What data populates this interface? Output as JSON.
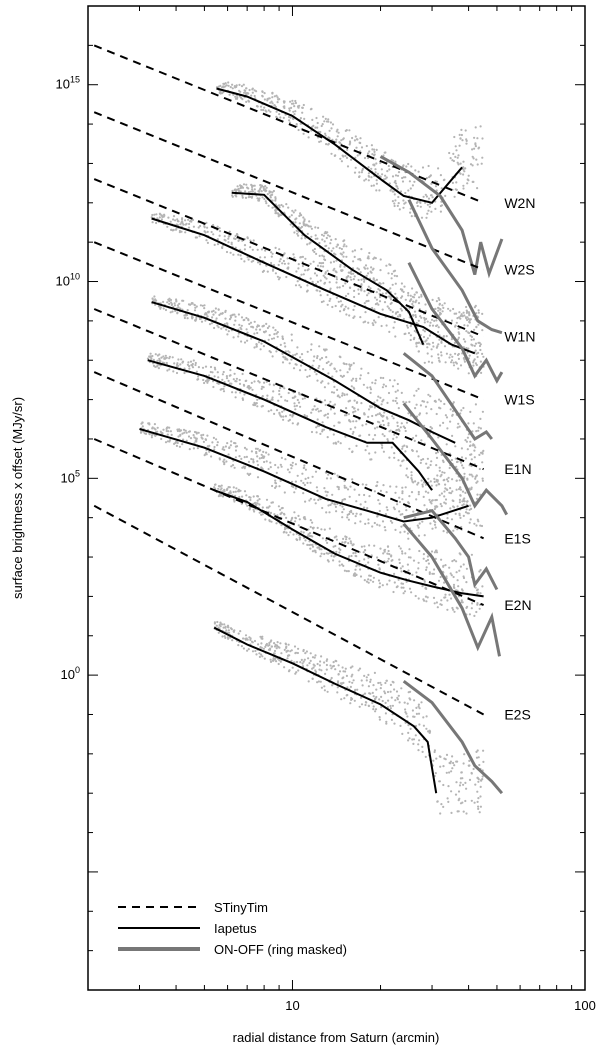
{
  "chart_data": {
    "type": "line",
    "xlabel": "radial distance from Saturn (arcmin)",
    "ylabel": "surface brightness x offset (MJy/sr)",
    "x_scale": "log",
    "y_scale": "log",
    "xlim": [
      2,
      100
    ],
    "ylim": [
      1e-08,
      1e+17
    ],
    "x_ticks": [
      {
        "value": 10,
        "label": "10"
      },
      {
        "value": 100,
        "label": "100"
      }
    ],
    "y_ticks": [
      {
        "value": 1,
        "base": "10",
        "exp": "0"
      },
      {
        "value": 100000,
        "base": "10",
        "exp": "5"
      },
      {
        "value": 10000000000,
        "base": "10",
        "exp": "10"
      },
      {
        "value": 1000000000000000.0,
        "base": "10",
        "exp": "15"
      }
    ],
    "legend": {
      "placement": "bottom-left",
      "entries": [
        {
          "label": "STinyTim",
          "style": "dashed",
          "color": "#000000"
        },
        {
          "label": "Iapetus",
          "style": "solid",
          "color": "#000000"
        },
        {
          "label": "ON-OFF (ring masked)",
          "style": "solid",
          "color": "#777777"
        }
      ]
    },
    "colors": {
      "scatter": "#b4b4b4",
      "stinytim": "#000000",
      "iapetus": "#000000",
      "onoff": "#777777"
    },
    "series": [
      {
        "name": "W2N",
        "stinytim": [
          [
            2.1,
            1e+16
          ],
          [
            45,
            1000000000000.0
          ]
        ],
        "iapetus": [
          [
            5.5,
            800000000000000.0
          ],
          [
            7,
            500000000000000.0
          ],
          [
            10,
            160000000000000.0
          ],
          [
            14,
            30000000000000.0
          ],
          [
            20,
            4000000000000.0
          ],
          [
            24,
            1500000000000.0
          ],
          [
            30,
            1000000000000.0
          ],
          [
            38,
            8000000000000.0
          ]
        ],
        "onoff": [
          [
            20,
            15000000000000.0
          ],
          [
            25,
            6000000000000.0
          ],
          [
            32,
            1500000000000.0
          ],
          [
            38,
            200000000000.0
          ],
          [
            42,
            15000000000.0
          ],
          [
            44,
            100000000000.0
          ],
          [
            47,
            16000000000.0
          ],
          [
            52,
            120000000000.0
          ]
        ]
      },
      {
        "name": "W2S",
        "stinytim": [
          [
            2.1,
            200000000000000.0
          ],
          [
            45,
            20000000000.0
          ]
        ],
        "iapetus": [
          [
            6.2,
            1800000000000.0
          ],
          [
            8,
            1600000000000.0
          ],
          [
            11,
            150000000000.0
          ],
          [
            16,
            20000000000.0
          ],
          [
            21,
            6000000000.0
          ],
          [
            25,
            1700000000.0
          ],
          [
            28,
            250000000.0
          ]
        ],
        "onoff": [
          [
            25,
            1200000000000.0
          ],
          [
            30,
            70000000000.0
          ],
          [
            38,
            6000000000.0
          ],
          [
            43,
            1000000000.0
          ],
          [
            48,
            600000000.0
          ],
          [
            52,
            500000000.0
          ]
        ]
      },
      {
        "name": "W1N",
        "stinytim": [
          [
            2.1,
            4000000000000.0
          ],
          [
            45,
            400000000.0
          ]
        ],
        "iapetus": [
          [
            3.3,
            400000000000.0
          ],
          [
            5,
            150000000000.0
          ],
          [
            8,
            30000000000.0
          ],
          [
            13,
            6000000000.0
          ],
          [
            20,
            1500000000.0
          ],
          [
            28,
            700000000.0
          ],
          [
            35,
            250000000.0
          ],
          [
            42,
            150000000.0
          ]
        ],
        "onoff": [
          [
            25,
            30000000000.0
          ],
          [
            30,
            2000000000.0
          ],
          [
            38,
            200000000.0
          ],
          [
            42,
            40000000.0
          ],
          [
            46,
            100000000.0
          ],
          [
            50,
            30000000.0
          ],
          [
            52,
            50000000.0
          ]
        ]
      },
      {
        "name": "W1S",
        "stinytim": [
          [
            2.1,
            100000000000.0
          ],
          [
            45,
            10000000.0
          ]
        ],
        "iapetus": [
          [
            3.3,
            3000000000.0
          ],
          [
            5,
            1200000000.0
          ],
          [
            8,
            300000000.0
          ],
          [
            14,
            30000000.0
          ],
          [
            20,
            6000000.0
          ],
          [
            25,
            3000000.0
          ],
          [
            30,
            1500000.0
          ],
          [
            36,
            800000.0
          ]
        ],
        "onoff": [
          [
            24,
            150000000.0
          ],
          [
            30,
            40000000.0
          ],
          [
            38,
            3000000.0
          ],
          [
            42,
            1000000.0
          ],
          [
            46,
            1500000.0
          ],
          [
            48,
            1000000.0
          ]
        ]
      },
      {
        "name": "E1N",
        "stinytim": [
          [
            2.1,
            2000000000.0
          ],
          [
            45,
            170000.0
          ]
        ],
        "iapetus": [
          [
            3.2,
            100000000.0
          ],
          [
            5,
            40000000.0
          ],
          [
            8,
            10000000.0
          ],
          [
            13,
            2000000.0
          ],
          [
            18,
            800000.0
          ],
          [
            22,
            800000.0
          ],
          [
            27,
            150000.0
          ],
          [
            30,
            50000.0
          ]
        ],
        "onoff": [
          [
            24,
            8000000.0
          ],
          [
            30,
            1000000.0
          ],
          [
            38,
            100000.0
          ],
          [
            42,
            20000.0
          ],
          [
            46,
            50000.0
          ],
          [
            52,
            20000.0
          ],
          [
            54,
            12000.0
          ]
        ]
      },
      {
        "name": "E1S",
        "stinytim": [
          [
            2.1,
            50000000.0
          ],
          [
            45,
            3000.0
          ]
        ],
        "iapetus": [
          [
            3,
            1800000.0
          ],
          [
            5,
            600000.0
          ],
          [
            8,
            150000.0
          ],
          [
            13,
            30000.0
          ],
          [
            18,
            15000.0
          ],
          [
            24,
            8000.0
          ],
          [
            30,
            10000.0
          ],
          [
            40,
            20000.0
          ]
        ],
        "onoff": [
          [
            24,
            10000.0
          ],
          [
            30,
            15000.0
          ],
          [
            36,
            3000.0
          ],
          [
            40,
            1000.0
          ],
          [
            42,
            200.0
          ],
          [
            46,
            500.0
          ],
          [
            50,
            150.0
          ]
        ]
      },
      {
        "name": "E2N",
        "stinytim": [
          [
            2.1,
            1000000.0
          ],
          [
            45,
            60.0
          ]
        ],
        "iapetus": [
          [
            5.4,
            50000.0
          ],
          [
            7,
            25000.0
          ],
          [
            10,
            5000.0
          ],
          [
            14,
            1200.0
          ],
          [
            20,
            400.0
          ],
          [
            25,
            250.0
          ],
          [
            30,
            180.0
          ],
          [
            38,
            120.0
          ],
          [
            45,
            100.0
          ]
        ],
        "onoff": [
          [
            24,
            7000.0
          ],
          [
            30,
            1000.0
          ],
          [
            38,
            50.0
          ],
          [
            43,
            5
          ],
          [
            48,
            30.0
          ],
          [
            51,
            3
          ]
        ]
      },
      {
        "name": "E2S",
        "stinytim": [
          [
            2.1,
            20000.0
          ],
          [
            45,
            0.1
          ]
        ],
        "iapetus": [
          [
            5.4,
            16.0
          ],
          [
            7,
            6
          ],
          [
            10,
            2
          ],
          [
            14,
            0.6
          ],
          [
            20,
            0.18
          ],
          [
            26,
            0.05
          ],
          [
            29,
            0.02
          ],
          [
            31,
            0.001
          ]
        ],
        "onoff": [
          [
            24,
            0.7
          ],
          [
            30,
            0.2
          ],
          [
            38,
            0.02
          ],
          [
            42,
            0.005
          ],
          [
            48,
            0.002
          ],
          [
            52,
            0.001
          ]
        ]
      }
    ],
    "annotations": [
      "W2N",
      "W2S",
      "W1N",
      "W1S",
      "E2N",
      "E2S",
      "E1N",
      "E1S"
    ]
  }
}
